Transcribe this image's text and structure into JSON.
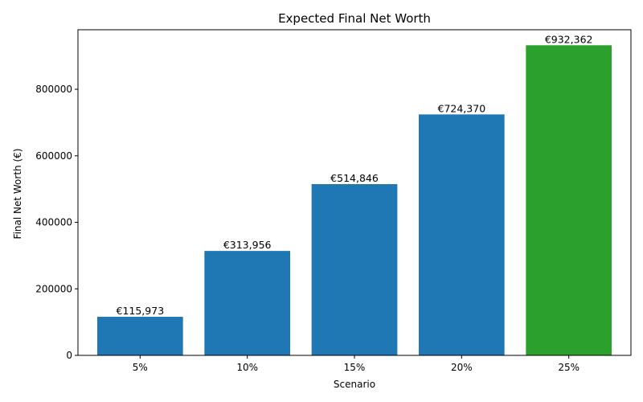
{
  "chart_data": {
    "type": "bar",
    "title": "Expected Final Net Worth",
    "xlabel": "Scenario",
    "ylabel": "Final Net Worth (€)",
    "categories": [
      "5%",
      "10%",
      "15%",
      "20%",
      "25%"
    ],
    "values": [
      115973,
      313956,
      514846,
      724370,
      932362
    ],
    "value_labels": [
      "€115,973",
      "€313,956",
      "€514,846",
      "€724,370",
      "€932,362"
    ],
    "bar_colors": [
      "#1f77b4",
      "#1f77b4",
      "#1f77b4",
      "#1f77b4",
      "#2ca02c"
    ],
    "yticks": [
      0,
      200000,
      400000,
      600000,
      800000
    ],
    "ylim": [
      0,
      978980
    ],
    "grid": false,
    "legend": "none"
  }
}
